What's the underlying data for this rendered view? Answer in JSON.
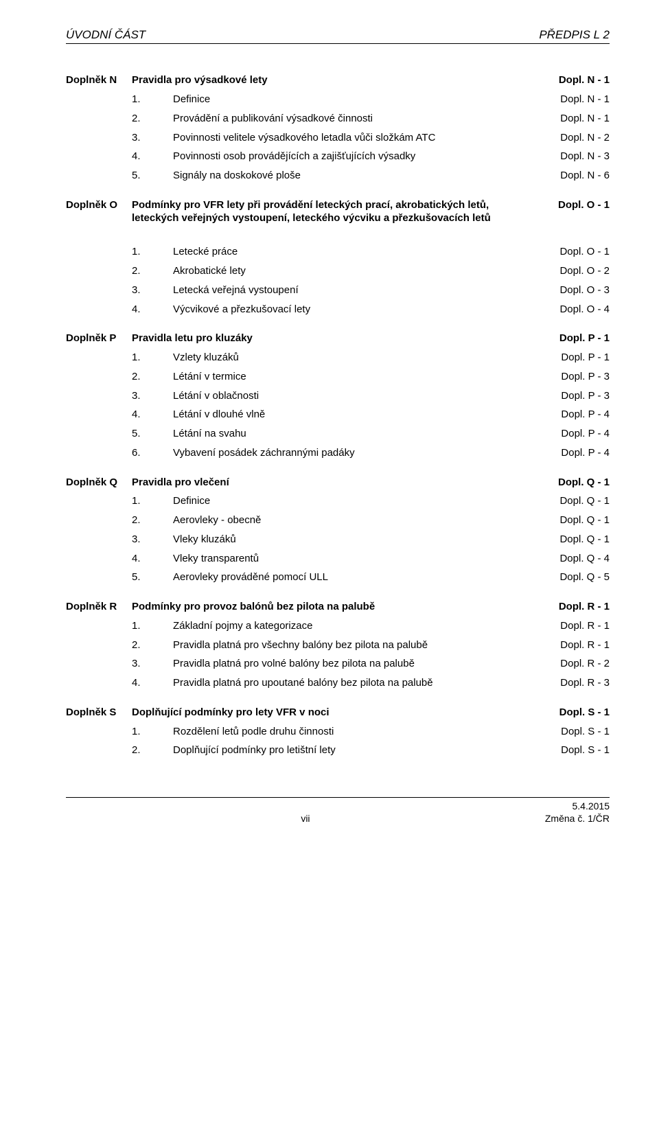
{
  "header": {
    "left": "ÚVODNÍ ČÁST",
    "right": "PŘEDPIS L 2"
  },
  "sections": [
    {
      "label": "Doplněk N",
      "title": "Pravidla pro výsadkové lety",
      "page": "Dopl. N - 1",
      "items": [
        {
          "num": "1.",
          "text": "Definice",
          "page": "Dopl. N - 1"
        },
        {
          "num": "2.",
          "text": "Provádění a publikování výsadkové činnosti",
          "page": "Dopl. N - 1"
        },
        {
          "num": "3.",
          "text": "Povinnosti velitele výsadkového letadla vůči složkám ATC",
          "page": "Dopl. N - 2"
        },
        {
          "num": "4.",
          "text": "Povinnosti osob provádějících a zajišťujících výsadky",
          "page": "Dopl. N - 3"
        },
        {
          "num": "5.",
          "text": "Signály na doskokové ploše",
          "page": "Dopl. N - 6"
        }
      ]
    },
    {
      "label": "Doplněk O",
      "title": "Podmínky pro VFR lety při provádění leteckých prací, akrobatických letů, leteckých veřejných vystoupení, leteckého výcviku a přezkušovacích letů",
      "page": "Dopl. O - 1",
      "items": [
        {
          "num": "1.",
          "text": "Letecké práce",
          "page": "Dopl. O - 1"
        },
        {
          "num": "2.",
          "text": "Akrobatické lety",
          "page": "Dopl. O - 2"
        },
        {
          "num": "3.",
          "text": "Letecká veřejná vystoupení",
          "page": "Dopl. O - 3"
        },
        {
          "num": "4.",
          "text": "Výcvikové a přezkušovací lety",
          "page": "Dopl. O - 4"
        }
      ]
    },
    {
      "label": "Doplněk P",
      "title": "Pravidla letu pro kluzáky",
      "page": "Dopl. P - 1",
      "items": [
        {
          "num": "1.",
          "text": "Vzlety kluzáků",
          "page": "Dopl. P - 1"
        },
        {
          "num": "2.",
          "text": "Létání v termice",
          "page": "Dopl. P - 3"
        },
        {
          "num": "3.",
          "text": "Létání v oblačnosti",
          "page": "Dopl. P - 3"
        },
        {
          "num": "4.",
          "text": "Létání v dlouhé vlně",
          "page": "Dopl. P - 4"
        },
        {
          "num": "5.",
          "text": "Létání na svahu",
          "page": "Dopl. P - 4"
        },
        {
          "num": "6.",
          "text": "Vybavení posádek záchrannými padáky",
          "page": "Dopl. P - 4"
        }
      ]
    },
    {
      "label": "Doplněk Q",
      "title": "Pravidla pro vlečení",
      "page": "Dopl. Q - 1",
      "items": [
        {
          "num": "1.",
          "text": "Definice",
          "page": "Dopl. Q - 1"
        },
        {
          "num": "2.",
          "text": "Aerovleky - obecně",
          "page": "Dopl. Q - 1"
        },
        {
          "num": "3.",
          "text": "Vleky kluzáků",
          "page": "Dopl. Q - 1"
        },
        {
          "num": "4.",
          "text": "Vleky transparentů",
          "page": "Dopl. Q - 4"
        },
        {
          "num": "5.",
          "text": "Aerovleky prováděné pomocí ULL",
          "page": "Dopl. Q - 5"
        }
      ]
    },
    {
      "label": "Doplněk R",
      "title": "Podmínky pro provoz balónů bez pilota na palubě",
      "page": "Dopl. R - 1",
      "items": [
        {
          "num": "1.",
          "text": "Základní pojmy a kategorizace",
          "page": "Dopl. R - 1"
        },
        {
          "num": "2.",
          "text": "Pravidla platná pro všechny balóny bez pilota na palubě",
          "page": "Dopl. R - 1"
        },
        {
          "num": "3.",
          "text": "Pravidla platná pro volné balóny bez pilota na palubě",
          "page": "Dopl. R - 2"
        },
        {
          "num": "4.",
          "text": "Pravidla platná pro upoutané balóny bez pilota na palubě",
          "page": "Dopl. R - 3"
        }
      ]
    },
    {
      "label": "Doplněk S",
      "title": "Doplňující podmínky pro lety VFR v noci",
      "page": "Dopl. S - 1",
      "items": [
        {
          "num": "1.",
          "text": "Rozdělení letů podle druhu činnosti",
          "page": "Dopl. S - 1"
        },
        {
          "num": "2.",
          "text": "Doplňující podmínky pro letištní lety",
          "page": "Dopl. S - 1"
        }
      ]
    }
  ],
  "footer": {
    "page_number": "vii",
    "date": "5.4.2015",
    "change": "Změna č. 1/ČR"
  }
}
